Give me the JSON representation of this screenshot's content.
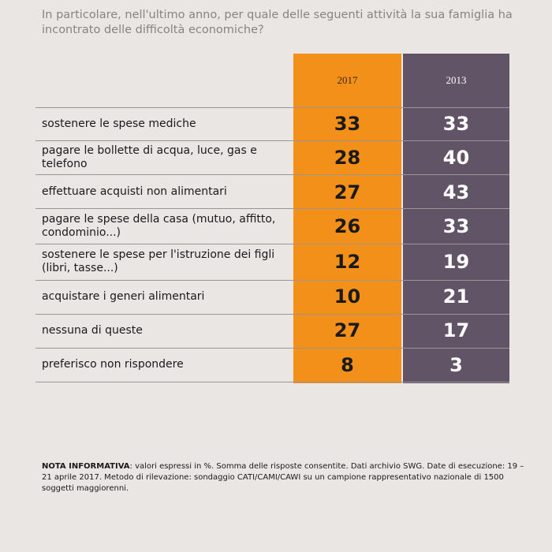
{
  "question": "In particolare, nell'ultimo anno, per quale delle seguenti attività la sua famiglia ha incontrato delle difficoltà economiche?",
  "chart_data": {
    "type": "table",
    "columns": [
      "2017",
      "2013"
    ],
    "rows": [
      {
        "label": "sostenere le spese mediche",
        "values": [
          33,
          33
        ]
      },
      {
        "label": "pagare le bollette di acqua, luce, gas e telefono",
        "values": [
          28,
          40
        ]
      },
      {
        "label": "effettuare acquisti non alimentari",
        "values": [
          27,
          43
        ]
      },
      {
        "label": "pagare le spese della casa (mutuo, affitto, condominio...)",
        "values": [
          26,
          33
        ]
      },
      {
        "label": "sostenere le spese per l'istruzione dei figli (libri, tasse...)",
        "values": [
          12,
          19
        ]
      },
      {
        "label": "acquistare i generi alimentari",
        "values": [
          10,
          21
        ]
      },
      {
        "label": "nessuna di queste",
        "values": [
          27,
          17
        ]
      },
      {
        "label": "preferisco non rispondere",
        "values": [
          8,
          3
        ]
      }
    ],
    "colors": {
      "2017": "#f39019",
      "2013": "#625467"
    }
  },
  "note": {
    "heading": "NOTA INFORMATIVA",
    "text": ": valori espressi in %. Somma delle risposte consentite. Dati archivio SWG. Date di esecuzione: 19 – 21 aprile  2017. Metodo di rilevazione: sondaggio CATI/CAMI/CAWI su un campione rappresentativo nazionale di 1500 soggetti maggiorenni."
  }
}
